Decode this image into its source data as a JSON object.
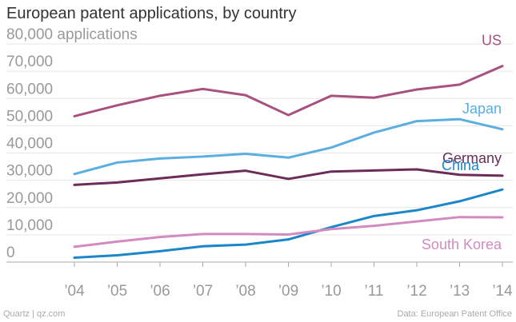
{
  "chart_data": {
    "type": "line",
    "title": "European patent applications, by country",
    "ylabel": "applications",
    "ylim": [
      0,
      80000
    ],
    "yticks": [
      0,
      10000,
      20000,
      30000,
      40000,
      50000,
      60000,
      70000,
      80000
    ],
    "ytick_labels": [
      "0",
      "10,000",
      "20,000",
      "30,000",
      "40,000",
      "50,000",
      "60,000",
      "70,000",
      "80,000 applications"
    ],
    "x": [
      2004,
      2005,
      2006,
      2007,
      2008,
      2009,
      2010,
      2011,
      2012,
      2013,
      2014
    ],
    "xtick_labels": [
      "’04",
      "’05",
      "’06",
      "’07",
      "’08",
      "’09",
      "’10",
      "’11",
      "’12",
      "’13",
      "’14"
    ],
    "grid": true,
    "series": [
      {
        "name": "US",
        "color": "#a8517e",
        "values": [
          53500,
          57500,
          61000,
          63500,
          61200,
          53900,
          61000,
          60300,
          63300,
          65100,
          71900
        ]
      },
      {
        "name": "Japan",
        "color": "#5aaee0",
        "values": [
          32300,
          36500,
          38000,
          38700,
          39700,
          38300,
          42000,
          47500,
          51700,
          52400,
          48700
        ]
      },
      {
        "name": "Germany",
        "color": "#6b2d57",
        "values": [
          28300,
          29200,
          30700,
          32200,
          33500,
          30500,
          33200,
          33600,
          34000,
          32000,
          31700
        ]
      },
      {
        "name": "China",
        "color": "#1b87c9",
        "values": [
          1600,
          2500,
          4000,
          5800,
          6400,
          8300,
          12800,
          16900,
          19000,
          22300,
          26600
        ]
      },
      {
        "name": "South Korea",
        "color": "#d18bbe",
        "values": [
          5600,
          7500,
          9200,
          10300,
          10300,
          10100,
          12100,
          13300,
          14900,
          16500,
          16400
        ]
      }
    ]
  },
  "footer": {
    "credit": "Quartz | qz.com",
    "source": "Data: European Patent Office"
  }
}
